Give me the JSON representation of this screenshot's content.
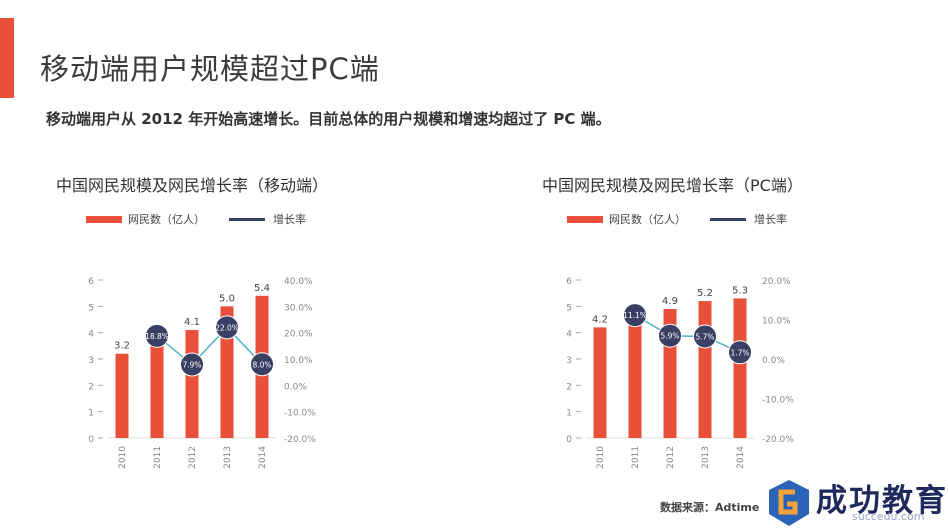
{
  "page": {
    "title": "移动端用户规模超过PC端",
    "subtitle": "移动端用户从 2012 年开始高速增长。目前总体的用户规模和增速均超过了 PC 端。",
    "source": "数据来源：Adtime",
    "watermark": {
      "text": "成功教育",
      "url": "succedu.com"
    },
    "accent_color": "#e8503a"
  },
  "chart_data": [
    {
      "type": "bar",
      "title": "中国网民规模及网民增长率（移动端）",
      "categories": [
        "2010",
        "2011",
        "2012",
        "2013",
        "2014"
      ],
      "series": [
        {
          "name": "网民数（亿人）",
          "type": "bar",
          "axis": "left",
          "values": [
            3.2,
            3.6,
            4.1,
            5.0,
            5.4
          ],
          "labels": [
            "3.2",
            "3.6",
            "4.1",
            "5.0",
            "5.4"
          ],
          "color": "#e8503a"
        },
        {
          "name": "增长率",
          "type": "line",
          "axis": "right",
          "values": [
            null,
            18.8,
            7.9,
            22.0,
            8.0
          ],
          "labels": [
            "",
            "18.8%",
            "7.9%",
            "22.0%",
            "8.0%"
          ],
          "color": "#3a3f63",
          "line_color": "#4bb6c6"
        }
      ],
      "y_left": {
        "min": 0,
        "max": 6,
        "ticks": [
          "0",
          "1",
          "2",
          "3",
          "4",
          "5",
          "6"
        ]
      },
      "y_right": {
        "min": -20,
        "max": 40,
        "ticks": [
          "-20.0%",
          "-10.0%",
          "0.0%",
          "10.0%",
          "20.0%",
          "30.0%",
          "40.0%"
        ]
      },
      "grid": false,
      "legend_position": "top-left"
    },
    {
      "type": "bar",
      "title": "中国网民规模及网民增长率（PC端）",
      "categories": [
        "2010",
        "2011",
        "2012",
        "2013",
        "2014"
      ],
      "series": [
        {
          "name": "网民数（亿人）",
          "type": "bar",
          "axis": "left",
          "values": [
            4.2,
            4.6,
            4.9,
            5.2,
            5.3
          ],
          "labels": [
            "4.2",
            "4.6",
            "4.9",
            "5.2",
            "5.3"
          ],
          "color": "#e8503a"
        },
        {
          "name": "增长率",
          "type": "line",
          "axis": "right",
          "values": [
            null,
            11.1,
            5.9,
            5.7,
            1.7
          ],
          "labels": [
            "",
            "11.1%",
            "5.9%",
            "5.7%",
            "1.7%"
          ],
          "color": "#3a3f63",
          "line_color": "#4bb6c6"
        }
      ],
      "y_left": {
        "min": 0,
        "max": 6,
        "ticks": [
          "0",
          "1",
          "2",
          "3",
          "4",
          "5",
          "6"
        ]
      },
      "y_right": {
        "min": -20,
        "max": 20,
        "ticks": [
          "-20.0%",
          "-10.0%",
          "0.0%",
          "10.0%",
          "20.0%"
        ]
      },
      "grid": false,
      "legend_position": "top-left"
    }
  ]
}
